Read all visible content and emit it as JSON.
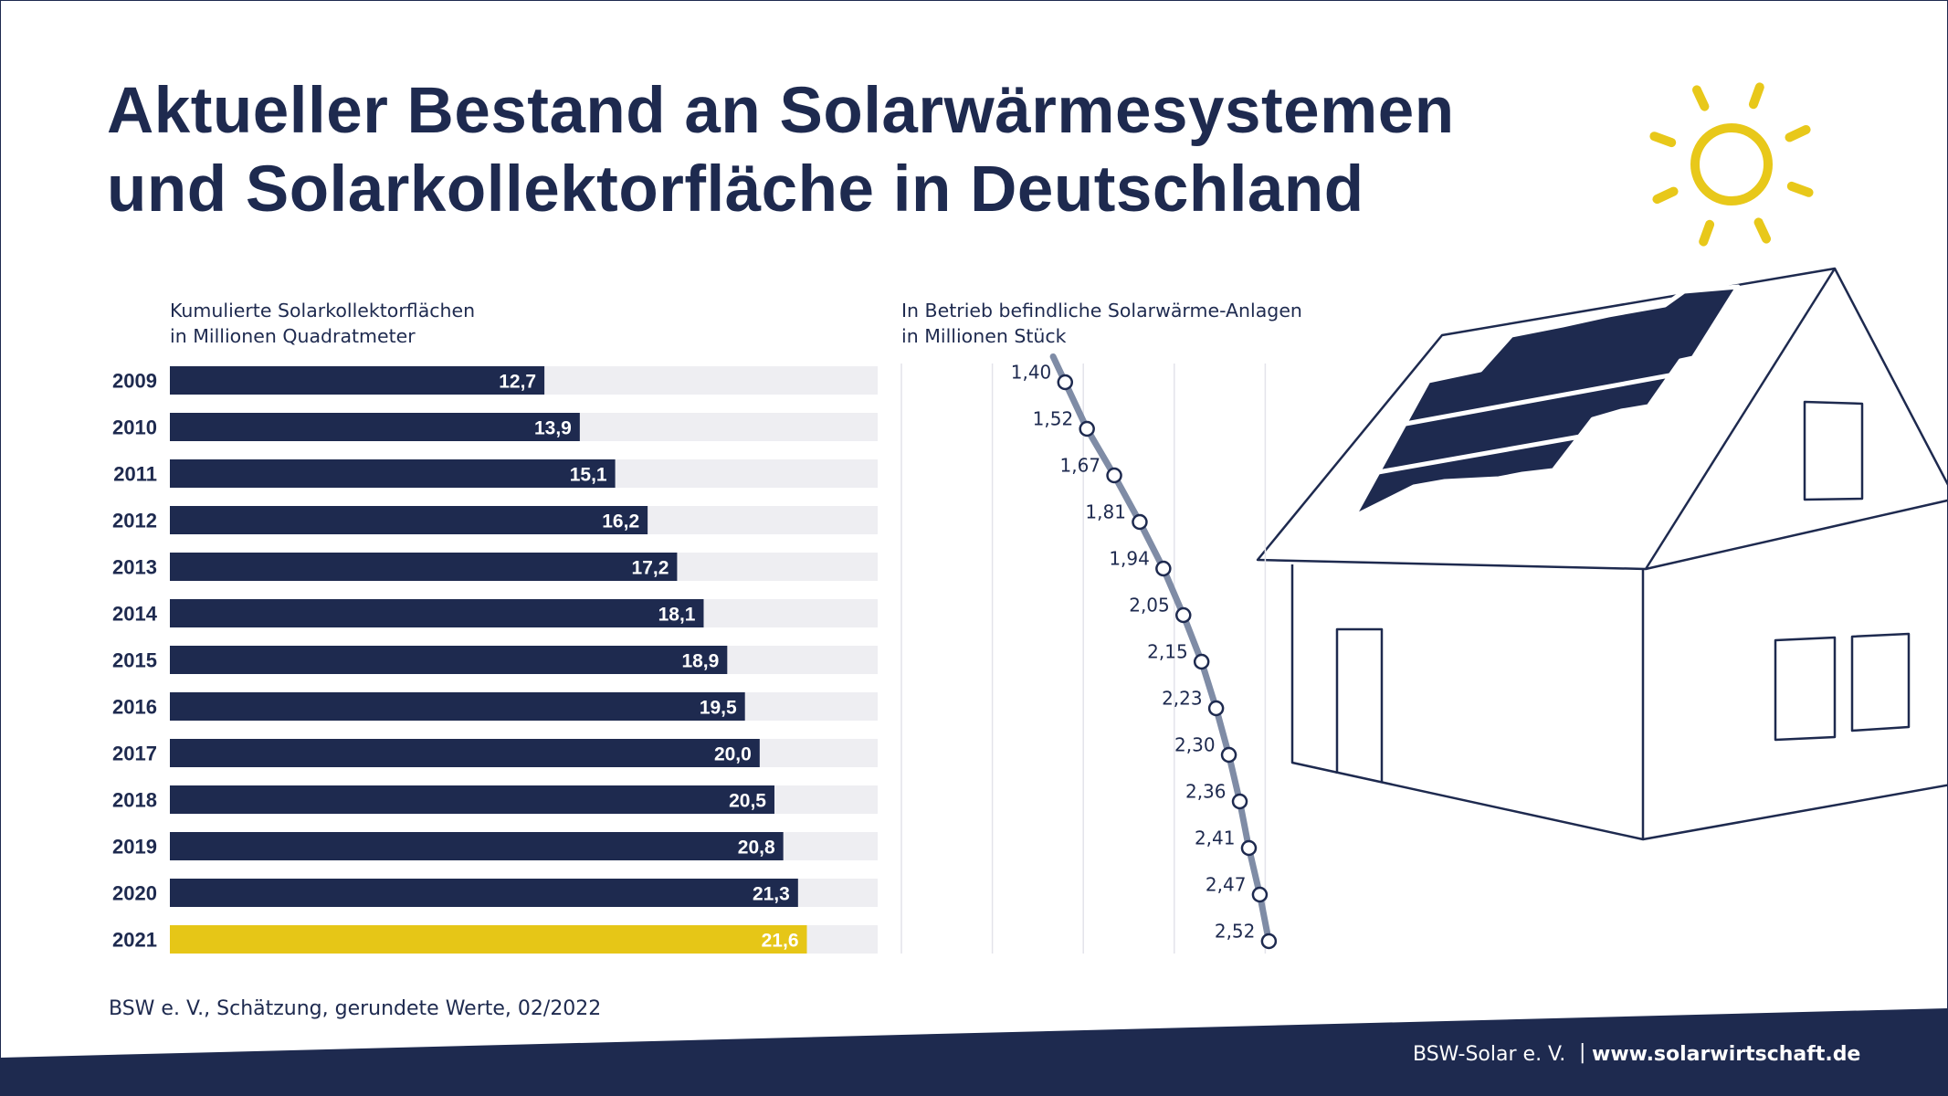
{
  "title_line1": "Aktueller Bestand an Solarwärmesystemen",
  "title_line2": "und Solarkollektorfläche in Deutschland",
  "colors": {
    "navy": "#1e2a4f",
    "highlight_yellow": "#e6c617",
    "bar_track": "#eeeef2",
    "line_gray": "#7f8ca6",
    "sun_yellow": "#e8c81a"
  },
  "icons": [
    "sun-icon",
    "house-with-solar-panels-illustration"
  ],
  "chart_data": [
    {
      "type": "bar",
      "orientation": "horizontal",
      "subtitle_line1": "Kumulierte Solarkollektorflächen",
      "subtitle_line2": "in Millionen Quadratmeter",
      "categories": [
        "2009",
        "2010",
        "2011",
        "2012",
        "2013",
        "2014",
        "2015",
        "2016",
        "2017",
        "2018",
        "2019",
        "2020",
        "2021"
      ],
      "values": [
        12.7,
        13.9,
        15.1,
        16.2,
        17.2,
        18.1,
        18.9,
        19.5,
        20.0,
        20.5,
        20.8,
        21.3,
        21.6
      ],
      "value_labels": [
        "12,7",
        "13,9",
        "15,1",
        "16,2",
        "17,2",
        "18,1",
        "18,9",
        "19,5",
        "20,0",
        "20,5",
        "20,8",
        "21,3",
        "21,6"
      ],
      "highlight_category": "2021",
      "xlim": [
        0,
        24
      ],
      "grid": false
    },
    {
      "type": "line",
      "subtitle_line1": "In Betrieb befindliche Solarwärme-Anlagen",
      "subtitle_line2": "in Millionen Stück",
      "categories": [
        "2009",
        "2010",
        "2011",
        "2012",
        "2013",
        "2014",
        "2015",
        "2016",
        "2017",
        "2018",
        "2019",
        "2020",
        "2021"
      ],
      "values": [
        1.4,
        1.52,
        1.67,
        1.81,
        1.94,
        2.05,
        2.15,
        2.23,
        2.3,
        2.36,
        2.41,
        2.47,
        2.52
      ],
      "value_labels": [
        "1,40",
        "1,52",
        "1,67",
        "1,81",
        "1,94",
        "2,05",
        "2,15",
        "2,23",
        "2,30",
        "2,36",
        "2,41",
        "2,47",
        "2,52"
      ],
      "xlim": [
        0.5,
        3.0
      ],
      "gridlines_at": [
        0.5,
        1.0,
        1.5,
        2.0,
        2.5,
        3.0
      ],
      "grid": true
    }
  ],
  "source_note": "BSW e. V., Schätzung, gerundete Werte, 02/2022",
  "footer": {
    "org": "BSW-Solar e. V.",
    "separator": "|",
    "url": "www.solarwirtschaft.de"
  }
}
